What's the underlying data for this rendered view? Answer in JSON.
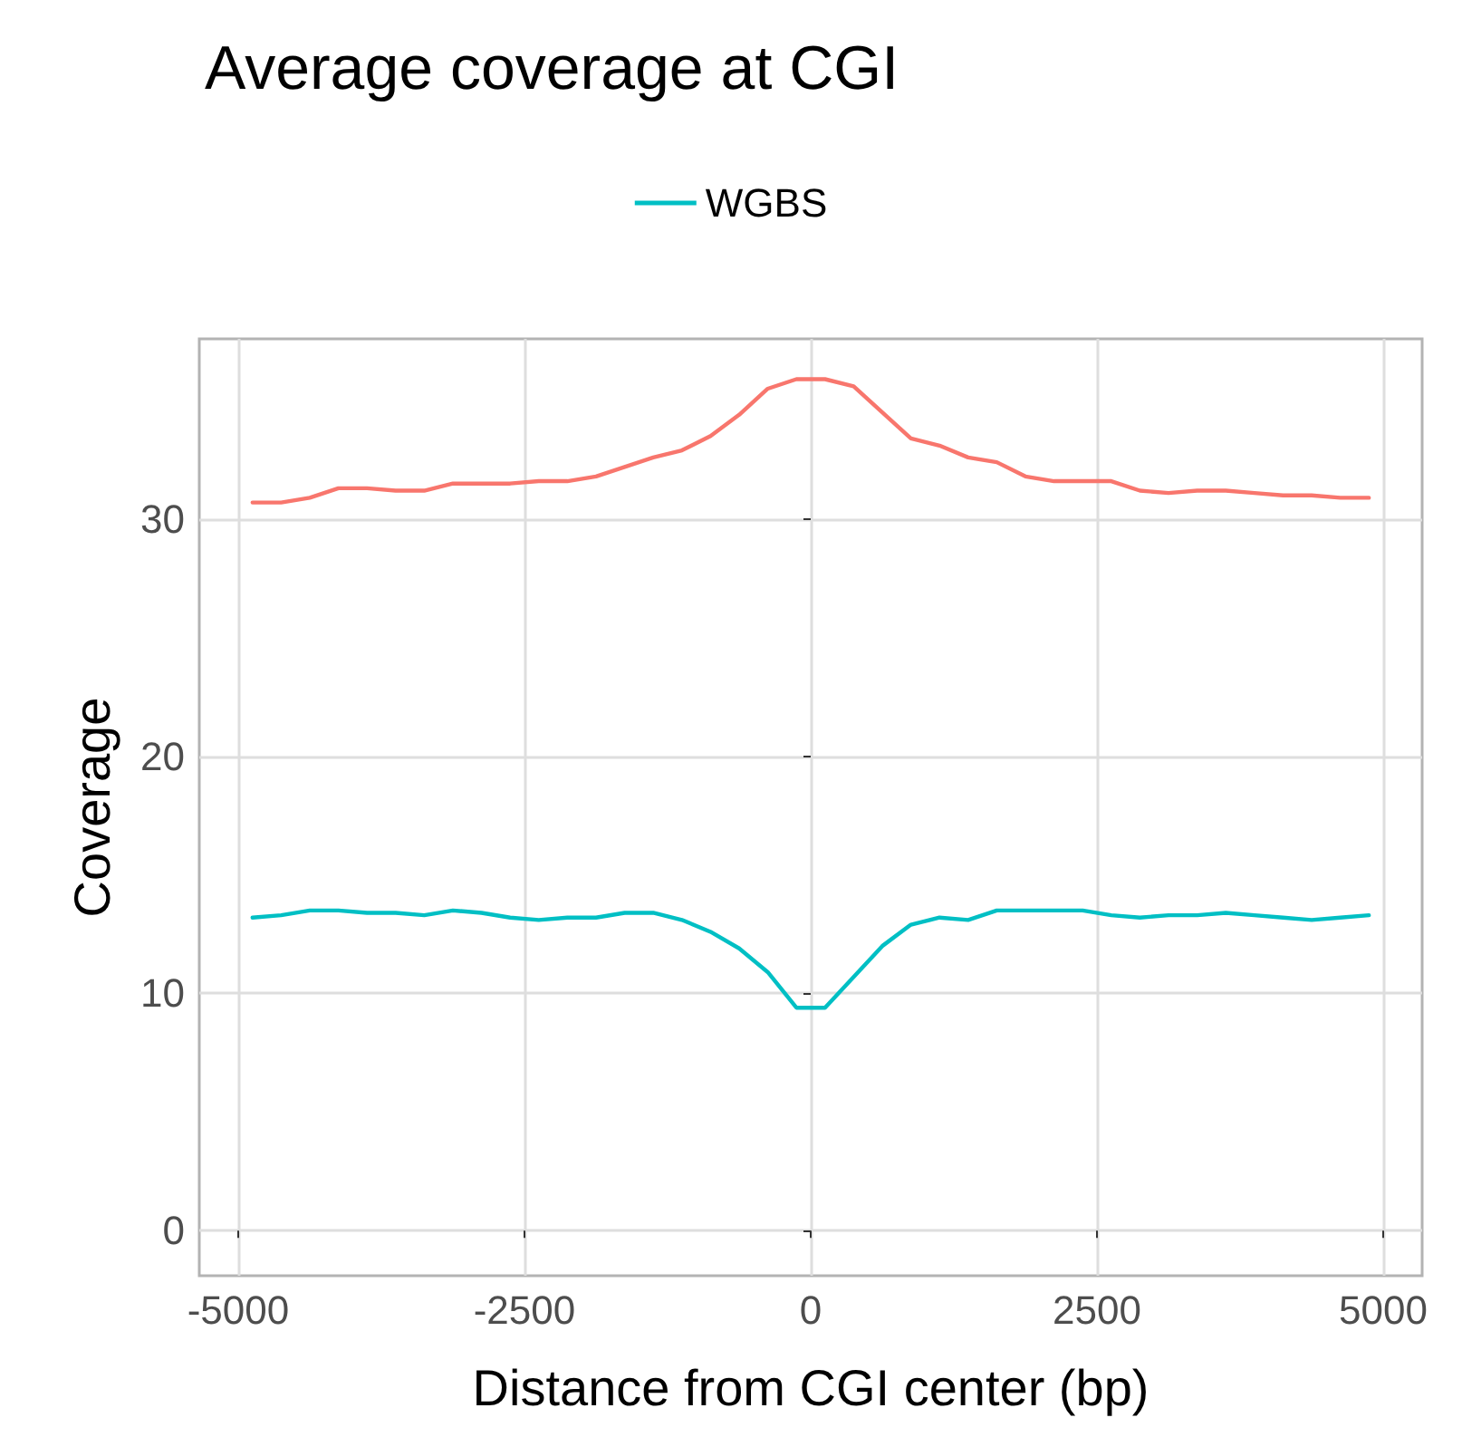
{
  "chart_data": {
    "type": "line",
    "title": "Average coverage at CGI",
    "xlabel": "Distance from CGI center (bp)",
    "ylabel": "Coverage",
    "x": [
      -4875,
      -4625,
      -4375,
      -4125,
      -3875,
      -3625,
      -3375,
      -3125,
      -2875,
      -2625,
      -2375,
      -2125,
      -1875,
      -1625,
      -1375,
      -1125,
      -875,
      -625,
      -375,
      -125,
      125,
      375,
      625,
      875,
      1125,
      1375,
      1625,
      1875,
      2125,
      2375,
      2625,
      2875,
      3125,
      3375,
      3625,
      3875,
      4125,
      4375,
      4625,
      4875
    ],
    "series": [
      {
        "color": "#f8766d",
        "values": [
          30.7,
          30.7,
          30.9,
          31.3,
          31.3,
          31.2,
          31.2,
          31.5,
          31.5,
          31.5,
          31.6,
          31.6,
          31.8,
          32.2,
          32.6,
          32.9,
          33.5,
          34.4,
          35.5,
          35.9,
          35.9,
          35.6,
          34.5,
          33.4,
          33.1,
          32.6,
          32.4,
          31.8,
          31.6,
          31.6,
          31.6,
          31.2,
          31.1,
          31.2,
          31.2,
          31.1,
          31.0,
          31.0,
          30.9,
          30.9
        ]
      },
      {
        "name": "WGBS",
        "color": "#00bfc4",
        "values": [
          13.2,
          13.3,
          13.5,
          13.5,
          13.4,
          13.4,
          13.3,
          13.5,
          13.4,
          13.2,
          13.1,
          13.2,
          13.2,
          13.4,
          13.4,
          13.1,
          12.6,
          11.9,
          10.9,
          9.4,
          9.4,
          10.7,
          12.0,
          12.9,
          13.2,
          13.1,
          13.5,
          13.5,
          13.5,
          13.5,
          13.3,
          13.2,
          13.3,
          13.3,
          13.4,
          13.3,
          13.2,
          13.1,
          13.2,
          13.3
        ]
      }
    ],
    "xlim": [
      -5340,
      5340
    ],
    "xticks": [
      -5000,
      -2500,
      0,
      2500,
      5000
    ],
    "ylim": [
      -1.9,
      37.6
    ],
    "yticks": [
      0,
      10,
      20,
      30
    ],
    "grid": true,
    "legend": "top",
    "marker": "none",
    "line_style": "solid"
  }
}
